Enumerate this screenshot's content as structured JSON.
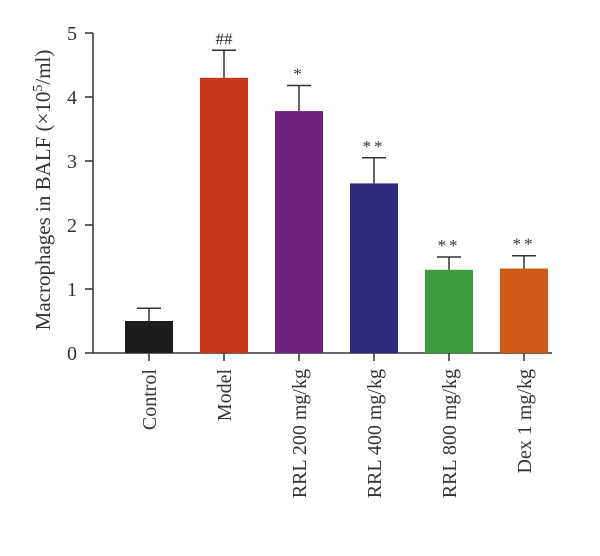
{
  "chart_data": {
    "type": "bar",
    "title": "",
    "ylabel": "Macrophages in BALF (×10⁵/ml)",
    "ylabel_parts": {
      "pre": "Macrophages in BALF (×10",
      "sup": "5",
      "post": "/ml)"
    },
    "xlabel": "",
    "ylim": [
      0,
      5
    ],
    "yticks": [
      0,
      1,
      2,
      3,
      4,
      5
    ],
    "grid": false,
    "legend": "none",
    "categories": [
      "Control",
      "Model",
      "RRL 200 mg/kg",
      "RRL 400 mg/kg",
      "RRL 800 mg/kg",
      "Dex 1 mg/kg"
    ],
    "values": [
      0.5,
      4.3,
      3.78,
      2.65,
      1.3,
      1.32
    ],
    "errors": [
      0.2,
      0.43,
      0.4,
      0.4,
      0.2,
      0.2
    ],
    "annotations": [
      "",
      "##",
      "*",
      "**",
      "**",
      "**"
    ],
    "colors": [
      "#1d1d1b",
      "#c8371a",
      "#6e2382",
      "#2f2a7e",
      "#3c9a41",
      "#cf5a16"
    ]
  }
}
